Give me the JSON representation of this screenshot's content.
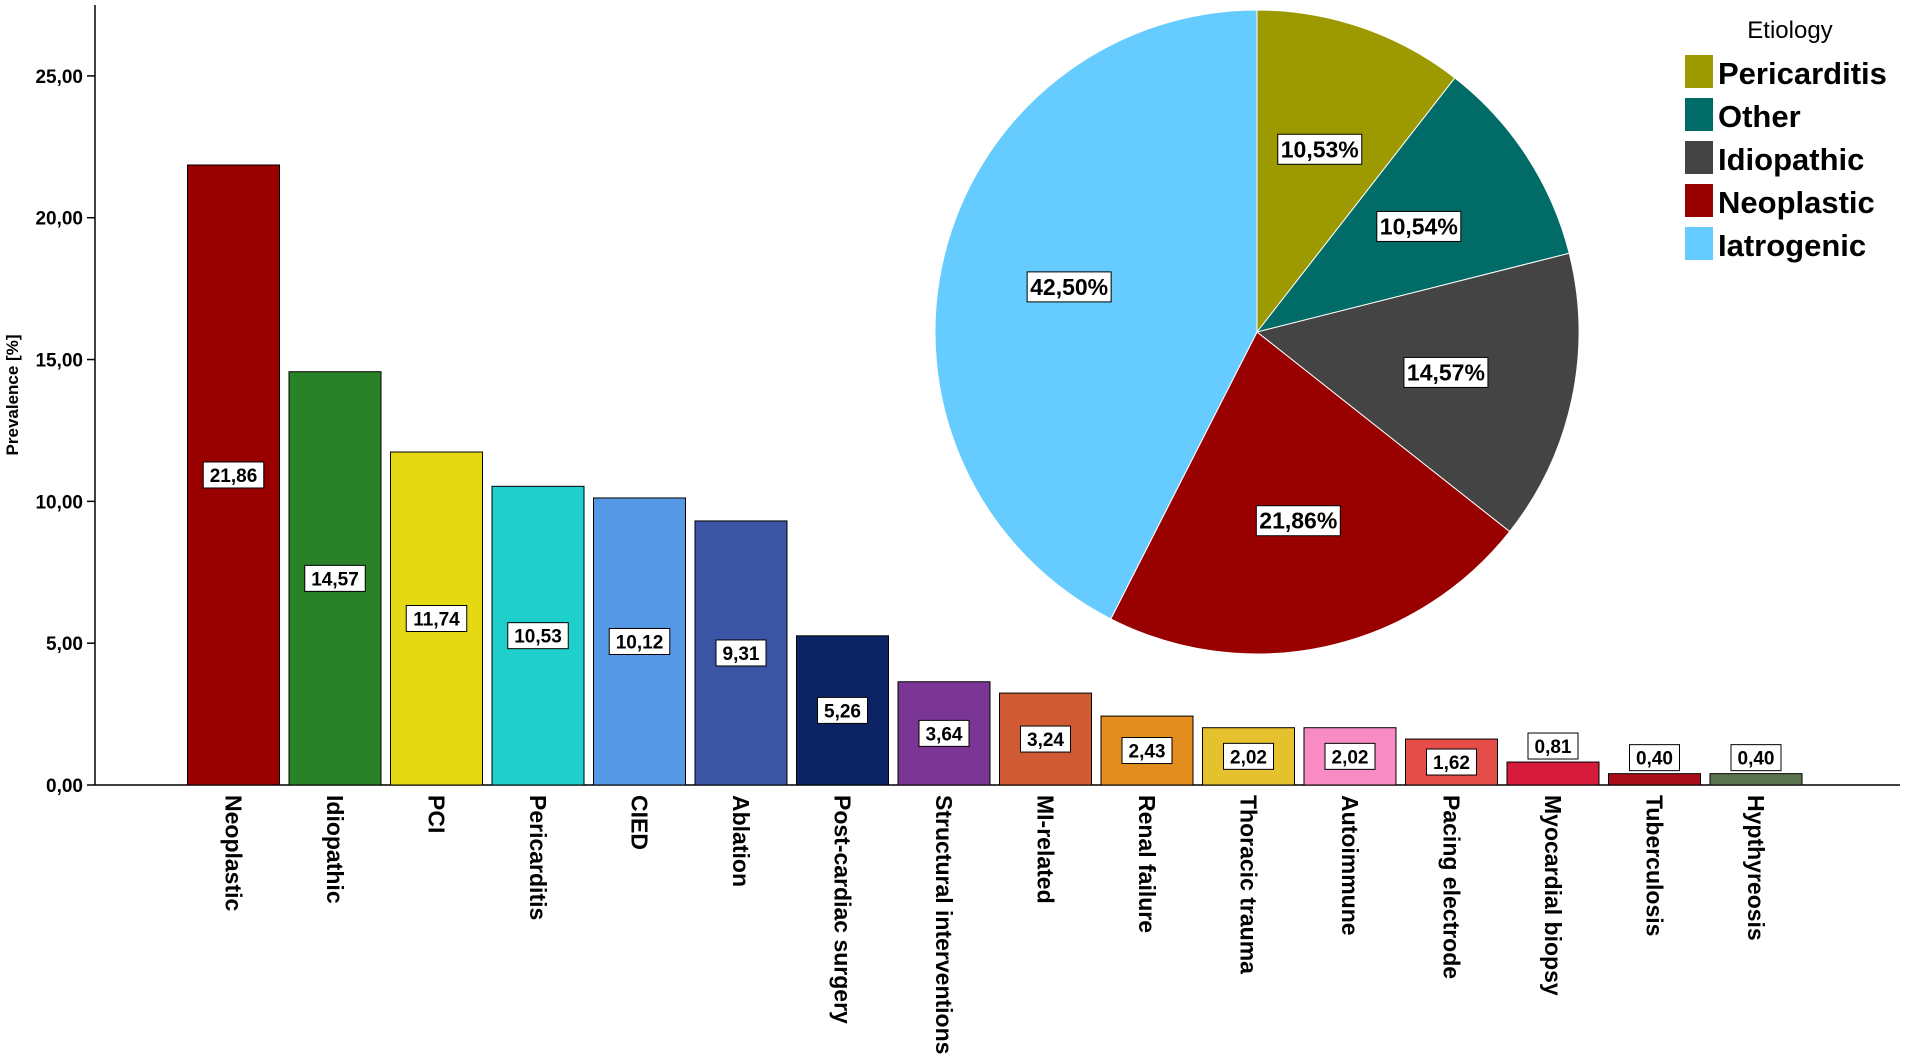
{
  "chart_data": [
    {
      "type": "bar",
      "ylabel": "Prevalence [%]",
      "ylim": [
        0,
        27.5
      ],
      "yticks": [
        "0,00",
        "5,00",
        "10,00",
        "15,00",
        "20,00",
        "25,00"
      ],
      "categories": [
        "Neoplastic",
        "Idiopathic",
        "PCI",
        "Pericarditis",
        "CIED",
        "Ablation",
        "Post-cardiac surgery",
        "Structural interventions",
        "MI-related",
        "Renal failure",
        "Thoracic trauma",
        "Autoimmune",
        "Pacing electrode",
        "Myocardial biopsy",
        "Tuberculosis",
        "Hypthyreosis"
      ],
      "values": [
        21.86,
        14.57,
        11.74,
        10.53,
        10.12,
        9.31,
        5.26,
        3.64,
        3.24,
        2.43,
        2.02,
        2.02,
        1.62,
        0.81,
        0.4,
        0.4
      ],
      "labels": [
        "21,86",
        "14,57",
        "11,74",
        "10,53",
        "10,12",
        "9,31",
        "5,26",
        "3,64",
        "3,24",
        "2,43",
        "2,02",
        "2,02",
        "1,62",
        "0,81",
        "0,40",
        "0,40"
      ],
      "colors": [
        "#990000",
        "#2a8228",
        "#e5d914",
        "#1ecfcb",
        "#5598e5",
        "#3a55a3",
        "#0d2464",
        "#7b3595",
        "#d05a34",
        "#e38d1e",
        "#e5c12e",
        "#f98bc4",
        "#e44d4a",
        "#d61a3a",
        "#a80e1a",
        "#5c7350"
      ],
      "grid": false
    },
    {
      "type": "pie",
      "legend_title": "Etiology",
      "legend_position": "top-right",
      "slices": [
        {
          "name": "Pericarditis",
          "value": 10.53,
          "label": "10,53%",
          "color": "#9c9a00"
        },
        {
          "name": "Other",
          "value": 10.54,
          "label": "10,54%",
          "color": "#006b67"
        },
        {
          "name": "Idiopathic",
          "value": 14.57,
          "label": "14,57%",
          "color": "#444444"
        },
        {
          "name": "Neoplastic",
          "value": 21.86,
          "label": "21,86%",
          "color": "#990000"
        },
        {
          "name": "Iatrogenic",
          "value": 42.5,
          "label": "42,50%",
          "color": "#66ccff"
        }
      ]
    }
  ]
}
